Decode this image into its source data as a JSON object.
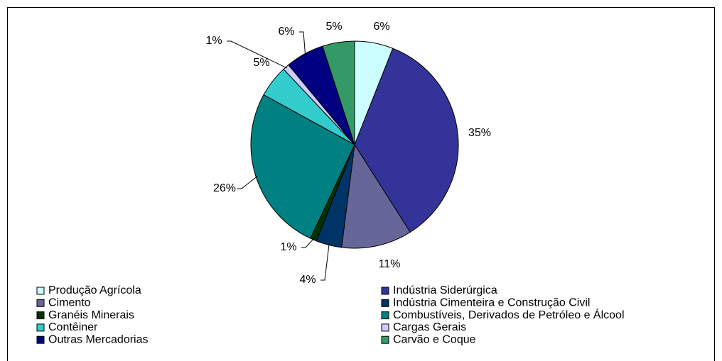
{
  "chart_data": {
    "type": "pie",
    "categories": [
      "Produção Agrícola",
      "Indústria Siderúrgica",
      "Cimento",
      "Indústria Cimenteira e Construção Civil",
      "Granéis Minerais",
      "Combustíveis, Derivados de Petróleo e Álcool",
      "Contêiner",
      "Cargas Gerais",
      "Outras Mercadorias",
      "Carvão e Coque"
    ],
    "values": [
      6,
      35,
      11,
      4,
      1,
      26,
      5,
      1,
      6,
      5
    ],
    "value_labels": [
      "6%",
      "35%",
      "11%",
      "4%",
      "1%",
      "26%",
      "5%",
      "1%",
      "6%",
      "5%"
    ],
    "colors": [
      "#ccffff",
      "#333399",
      "#666699",
      "#003366",
      "#003300",
      "#008080",
      "#33cccc",
      "#ccccff",
      "#000080",
      "#339966"
    ],
    "legend": "bottom"
  }
}
